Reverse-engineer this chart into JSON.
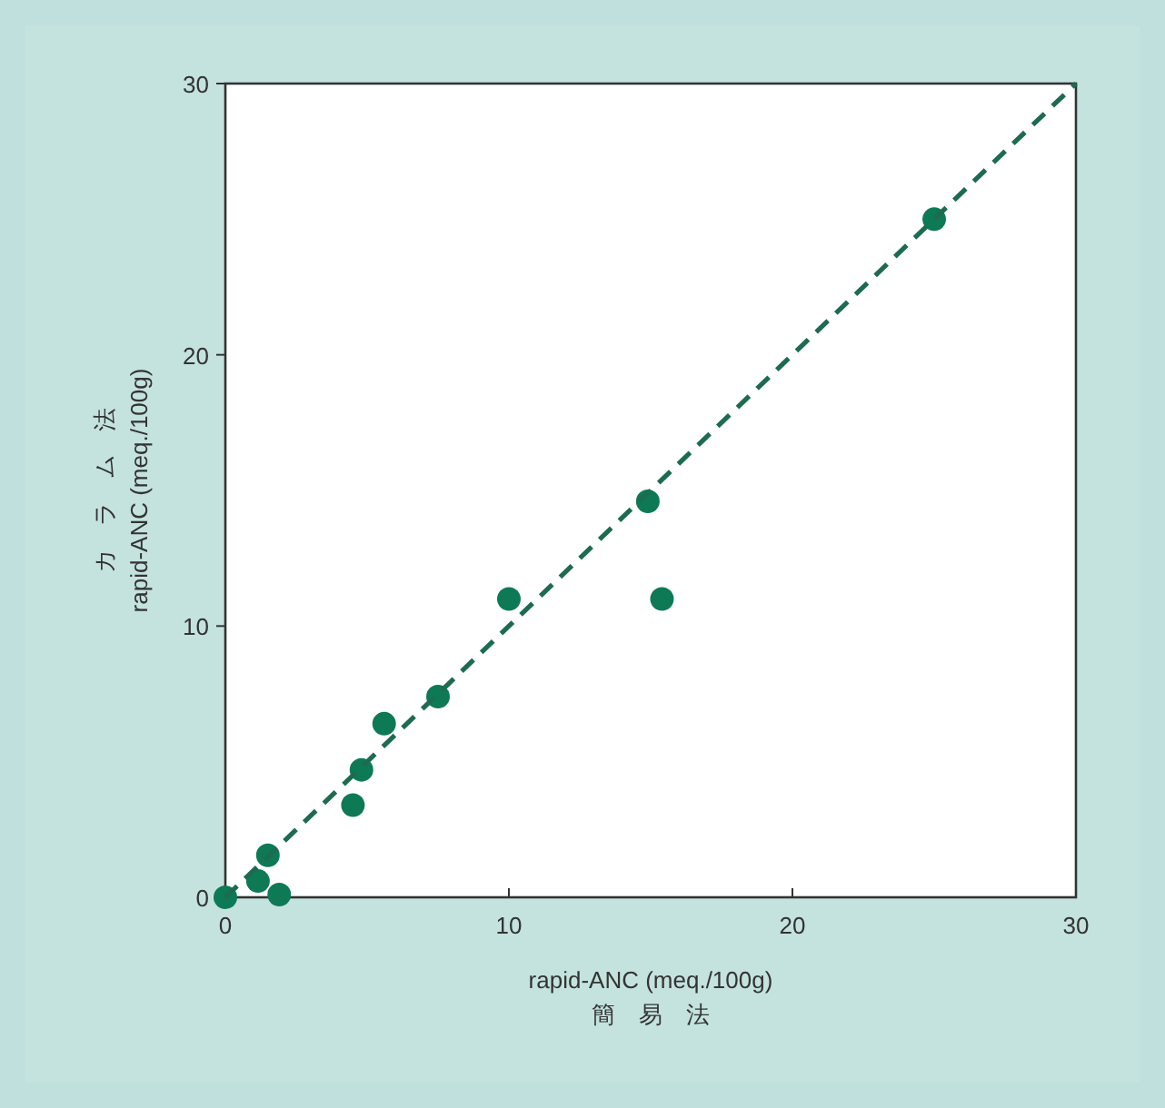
{
  "chart_data": {
    "type": "scatter",
    "xlabel": "rapid-ANC (meq./100g)\n簡　易　法",
    "ylabel": "カ　ラ　ム　法\nrapid-ANC (meq./100g)",
    "xlim": [
      0,
      30
    ],
    "ylim": [
      0,
      30
    ],
    "xticks": [
      0,
      10,
      20,
      30
    ],
    "yticks": [
      0,
      10,
      20,
      30
    ],
    "grid": false,
    "marker": "circle",
    "series": [
      {
        "color": "#0e7a55",
        "x": [
          0,
          1.15,
          1.5,
          1.9,
          4.5,
          4.8,
          5.6,
          7.5,
          10,
          14.9,
          15.4,
          25
        ],
        "values": [
          0,
          0.6,
          1.55,
          0.1,
          3.4,
          4.7,
          6.4,
          7.4,
          11.0,
          14.6,
          11.0,
          25
        ]
      },
      {
        "type": "line",
        "color": "#1d6b50",
        "line_style": "dashed",
        "marker": "none",
        "x": [
          0,
          30
        ],
        "values": [
          0,
          30
        ]
      }
    ]
  }
}
